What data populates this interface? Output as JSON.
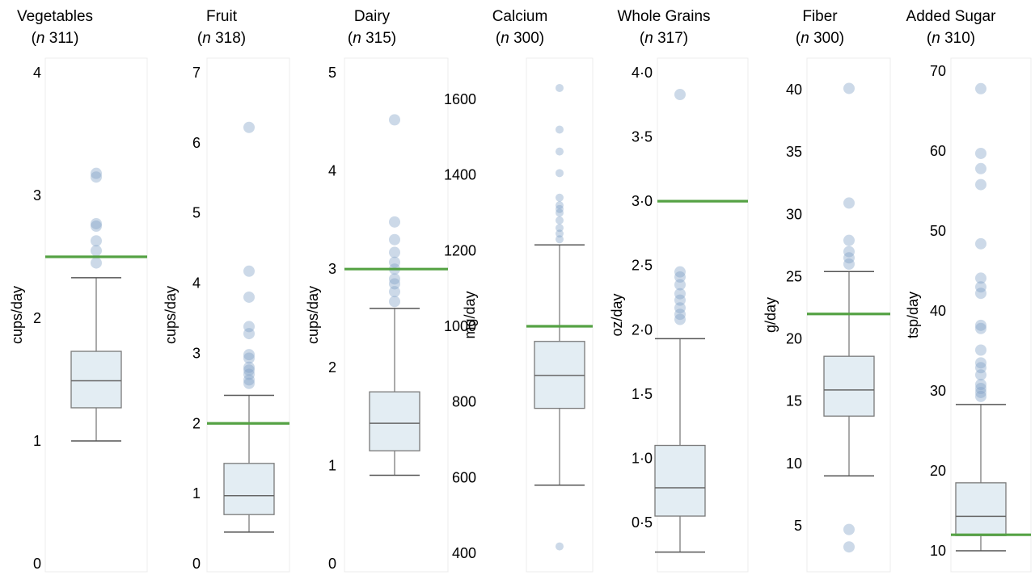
{
  "chart_data": [
    {
      "type": "box",
      "title": "Vegetables",
      "n_label": "n",
      "n_value": "311",
      "ylabel": "cups/day",
      "ylim": [
        0,
        4
      ],
      "yticks": [
        0,
        1,
        2,
        3,
        4
      ],
      "tick_labels": [
        "0",
        "1",
        "2",
        "3",
        "4"
      ],
      "box": {
        "whisker_low": 1.0,
        "q1": 1.27,
        "median": 1.49,
        "q3": 1.73,
        "whisker_high": 2.33
      },
      "outliers": [
        2.45,
        2.55,
        2.63,
        2.75,
        2.77,
        3.15,
        3.18
      ],
      "recommendation": 2.5
    },
    {
      "type": "box",
      "title": "Fruit",
      "n_label": "n",
      "n_value": "318",
      "ylabel": "cups/day",
      "ylim": [
        0,
        7
      ],
      "yticks": [
        0,
        1,
        2,
        3,
        4,
        5,
        6,
        7
      ],
      "tick_labels": [
        "0",
        "1",
        "2",
        "3",
        "4",
        "5",
        "6",
        "7"
      ],
      "box": {
        "whisker_low": 0.45,
        "q1": 0.7,
        "median": 0.97,
        "q3": 1.43,
        "whisker_high": 2.4
      },
      "outliers": [
        2.57,
        2.62,
        2.7,
        2.76,
        2.8,
        2.93,
        2.98,
        3.28,
        3.38,
        3.8,
        4.17,
        6.22
      ],
      "recommendation": 2.0
    },
    {
      "type": "box",
      "title": "Dairy",
      "n_label": "n",
      "n_value": "315",
      "ylabel": "cups/day",
      "ylim": [
        0,
        5
      ],
      "yticks": [
        0,
        1,
        2,
        3,
        4,
        5
      ],
      "tick_labels": [
        "0",
        "1",
        "2",
        "3",
        "4",
        "5"
      ],
      "box": {
        "whisker_low": 0.9,
        "q1": 1.15,
        "median": 1.43,
        "q3": 1.75,
        "whisker_high": 2.6
      },
      "outliers": [
        2.67,
        2.77,
        2.85,
        2.9,
        3.0,
        3.07,
        3.17,
        3.3,
        3.48,
        4.52
      ],
      "recommendation": 3.0
    },
    {
      "type": "box",
      "title": "Calcium",
      "n_label": "n",
      "n_value": "300",
      "ylabel": "mg/day",
      "ylim": [
        390,
        1690
      ],
      "yticks": [
        400,
        600,
        800,
        1000,
        1200,
        1400,
        1600
      ],
      "tick_labels": [
        "400",
        "600",
        "800",
        "1000",
        "1200",
        "1400",
        "1600"
      ],
      "box": {
        "whisker_low": 580,
        "q1": 783,
        "median": 870,
        "q3": 960,
        "whisker_high": 1215
      },
      "outliers": [
        418,
        1230,
        1245,
        1260,
        1280,
        1300,
        1310,
        1320,
        1340,
        1405,
        1462,
        1520,
        1630
      ],
      "recommendation": 1000
    },
    {
      "type": "box",
      "title": "Whole Grains",
      "n_label": "n",
      "n_value": "317",
      "ylabel": "oz/day",
      "ylim": [
        0.2,
        4.1
      ],
      "yticks": [
        0.5,
        1.0,
        1.5,
        2.0,
        2.5,
        3.0,
        3.5,
        4.0
      ],
      "tick_labels": [
        "0·5",
        "1·0",
        "1·5",
        "2·0",
        "2·5",
        "3·0",
        "3·5",
        "4·0"
      ],
      "box": {
        "whisker_low": 0.27,
        "q1": 0.55,
        "median": 0.77,
        "q3": 1.1,
        "whisker_high": 1.93
      },
      "outliers": [
        2.08,
        2.12,
        2.17,
        2.23,
        2.28,
        2.35,
        2.41,
        2.45,
        3.83
      ],
      "recommendation": 3.0
    },
    {
      "type": "box",
      "title": "Fiber",
      "n_label": "n",
      "n_value": "300",
      "ylabel": "g/day",
      "ylim": [
        2.5,
        42.5
      ],
      "yticks": [
        5,
        10,
        15,
        20,
        25,
        30,
        35,
        40
      ],
      "tick_labels": [
        "5",
        "10",
        "15",
        "20",
        "25",
        "30",
        "35",
        "40"
      ],
      "box": {
        "whisker_low": 9,
        "q1": 13.8,
        "median": 15.9,
        "q3": 18.6,
        "whisker_high": 25.4
      },
      "outliers": [
        3.3,
        4.7,
        26.0,
        26.5,
        27.0,
        27.9,
        30.9,
        40.1
      ],
      "recommendation": 22
    },
    {
      "type": "box",
      "title": "Added Sugar",
      "n_label": "n",
      "n_value": "310",
      "ylabel": "tsp/day",
      "ylim": [
        8.5,
        72.5
      ],
      "yticks": [
        10,
        20,
        30,
        40,
        50,
        60,
        70
      ],
      "tick_labels": [
        "10",
        "20",
        "30",
        "40",
        "50",
        "60",
        "70"
      ],
      "box": {
        "whisker_low": 10,
        "q1": 11.9,
        "median": 14.3,
        "q3": 18.5,
        "whisker_high": 28.3
      },
      "outliers": [
        29.3,
        29.8,
        30.3,
        30.8,
        32.0,
        32.9,
        33.5,
        35.1,
        37.8,
        38.2,
        42.2,
        43.0,
        44.1,
        48.4,
        55.8,
        57.8,
        59.7,
        67.8
      ],
      "recommendation": 12
    }
  ]
}
